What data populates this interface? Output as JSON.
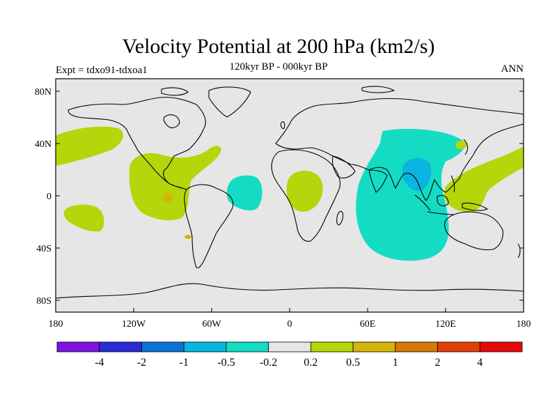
{
  "title": "Velocity Potential at 200 hPa (km2/s)",
  "subtitle": "120kyr BP - 000kyr BP",
  "experiment": "Expt = tdxo91-tdxoa1",
  "season": "ANN",
  "lat_ticks": [
    "80N",
    "40N",
    "0",
    "40S",
    "80S"
  ],
  "lon_ticks": [
    "180",
    "120W",
    "60W",
    "0",
    "60E",
    "120E",
    "180"
  ],
  "colorbar": {
    "levels": [
      "-4",
      "-2",
      "-1",
      "-0.5",
      "-0.2",
      "0.2",
      "0.5",
      "1",
      "2",
      "4"
    ],
    "colors": [
      "#7b16e0",
      "#2b2bd6",
      "#0a74d6",
      "#0ab4e0",
      "#14dcc4",
      "#e6e6e6",
      "#b4d60a",
      "#d6b40a",
      "#d6780a",
      "#e0400a",
      "#e60a0a"
    ]
  },
  "colors": {
    "background_field": "#e6e6e6",
    "coastline": "#000000"
  },
  "anomaly_regions": [
    {
      "name": "north-pacific-east",
      "value_class": "0.2 to 0.5"
    },
    {
      "name": "eastern-tropical-pacific",
      "value_class": "0.2 to 0.5"
    },
    {
      "name": "eastern-pacific-center",
      "value_class": "0.5 to 1"
    },
    {
      "name": "south-pacific",
      "value_class": "0.2 to 0.5"
    },
    {
      "name": "equatorial-atlantic",
      "value_class": "-0.5 to -0.2"
    },
    {
      "name": "central-africa",
      "value_class": "0.2 to 0.5"
    },
    {
      "name": "indian-ocean",
      "value_class": "-0.5 to -0.2"
    },
    {
      "name": "southeast-asia-core",
      "value_class": "-1 to -0.5"
    },
    {
      "name": "western-pacific",
      "value_class": "0.2 to 0.5"
    }
  ]
}
